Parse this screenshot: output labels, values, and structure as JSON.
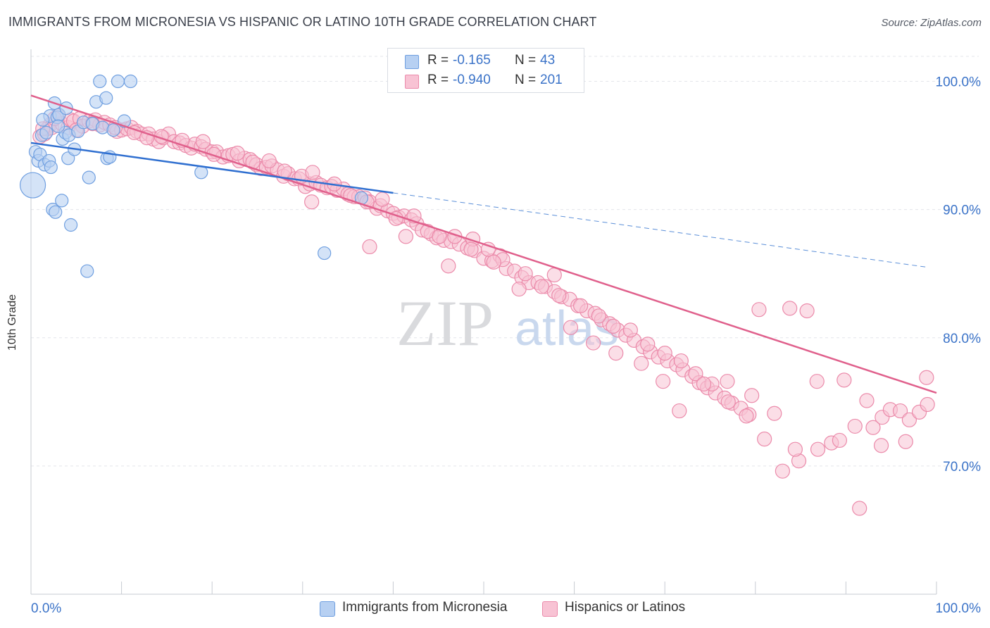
{
  "title": "IMMIGRANTS FROM MICRONESIA VS HISPANIC OR LATINO 10TH GRADE CORRELATION CHART",
  "source": "Source: ZipAtlas.com",
  "watermark": {
    "zip": "ZIP",
    "atlas": "atlas"
  },
  "legend": {
    "r_label": "R =",
    "n_label": "N =",
    "rows": [
      {
        "r": "-0.165",
        "n": "43",
        "fill": "#b7d0f2",
        "stroke": "#6f9fe0"
      },
      {
        "r": "-0.940",
        "n": "201",
        "fill": "#f8c3d4",
        "stroke": "#eb8aaa"
      }
    ]
  },
  "chart_data": {
    "type": "scatter",
    "title": "IMMIGRANTS FROM MICRONESIA VS HISPANIC OR LATINO 10TH GRADE CORRELATION CHART",
    "xlabel": "",
    "ylabel": "10th Grade",
    "xlim": [
      0,
      100
    ],
    "ylim": [
      60,
      102.5
    ],
    "x_tick_labels": [
      "0.0%",
      "100.0%"
    ],
    "y_ticks": [
      70,
      80,
      90,
      100
    ],
    "y_tick_labels": [
      "70.0%",
      "80.0%",
      "90.0%",
      "100.0%"
    ],
    "grid": "horizontal dashed",
    "legend_position": "top-center",
    "series": [
      {
        "name": "Immigrants from Micronesia",
        "color": "#6f9fe0",
        "fill": "#b7d0f2",
        "points": [
          [
            0.2,
            91.9
          ],
          [
            0.5,
            94.5
          ],
          [
            0.8,
            93.8
          ],
          [
            1.0,
            94.3
          ],
          [
            1.2,
            95.8
          ],
          [
            1.5,
            93.5
          ],
          [
            1.7,
            96.0
          ],
          [
            2.0,
            93.8
          ],
          [
            2.1,
            97.3
          ],
          [
            2.2,
            93.3
          ],
          [
            2.4,
            90.0
          ],
          [
            2.6,
            98.3
          ],
          [
            2.7,
            89.8
          ],
          [
            2.9,
            97.2
          ],
          [
            3.1,
            97.4
          ],
          [
            3.4,
            90.7
          ],
          [
            3.5,
            95.5
          ],
          [
            3.8,
            96.0
          ],
          [
            3.9,
            97.9
          ],
          [
            4.1,
            94.0
          ],
          [
            4.2,
            95.8
          ],
          [
            4.4,
            88.8
          ],
          [
            4.8,
            94.7
          ],
          [
            5.2,
            96.1
          ],
          [
            5.8,
            96.8
          ],
          [
            6.2,
            85.2
          ],
          [
            6.4,
            92.5
          ],
          [
            6.8,
            96.7
          ],
          [
            7.2,
            98.4
          ],
          [
            7.6,
            100.0
          ],
          [
            7.9,
            96.4
          ],
          [
            8.3,
            98.7
          ],
          [
            8.4,
            94.0
          ],
          [
            8.7,
            94.1
          ],
          [
            9.1,
            96.2
          ],
          [
            9.6,
            100.0
          ],
          [
            10.3,
            96.9
          ],
          [
            11.0,
            100.0
          ],
          [
            18.8,
            92.9
          ],
          [
            32.4,
            86.6
          ],
          [
            36.5,
            90.9
          ],
          [
            1.3,
            97.0
          ],
          [
            3.0,
            96.5
          ]
        ],
        "trend": {
          "x0": 0,
          "y0": 95.2,
          "x1": 40,
          "y1": 91.3,
          "dash_to_x": 99,
          "dash_to_y": 85.5
        }
      },
      {
        "name": "Hispanics or Latinos",
        "color": "#eb8aaa",
        "fill": "#f8c3d4",
        "points": [
          [
            1.0,
            95.7
          ],
          [
            1.5,
            95.9
          ],
          [
            1.8,
            96.3
          ],
          [
            2.1,
            96.6
          ],
          [
            2.3,
            96.4
          ],
          [
            3.0,
            97.3
          ],
          [
            3.4,
            96.7
          ],
          [
            4.1,
            96.4
          ],
          [
            4.4,
            97.0
          ],
          [
            4.7,
            96.9
          ],
          [
            5.4,
            97.1
          ],
          [
            5.7,
            96.5
          ],
          [
            6.4,
            96.9
          ],
          [
            7.1,
            97.0
          ],
          [
            7.6,
            96.6
          ],
          [
            8.1,
            96.8
          ],
          [
            8.7,
            96.6
          ],
          [
            9.5,
            96.1
          ],
          [
            10.0,
            96.2
          ],
          [
            10.6,
            96.3
          ],
          [
            11.1,
            96.4
          ],
          [
            11.7,
            96.1
          ],
          [
            12.2,
            95.9
          ],
          [
            13.0,
            95.9
          ],
          [
            13.5,
            95.5
          ],
          [
            14.1,
            95.3
          ],
          [
            14.6,
            95.6
          ],
          [
            15.2,
            95.9
          ],
          [
            15.8,
            95.3
          ],
          [
            16.4,
            95.2
          ],
          [
            17.1,
            95.0
          ],
          [
            17.7,
            94.8
          ],
          [
            18.1,
            95.1
          ],
          [
            18.8,
            94.9
          ],
          [
            19.3,
            94.7
          ],
          [
            20.0,
            94.5
          ],
          [
            20.5,
            94.5
          ],
          [
            21.2,
            94.1
          ],
          [
            21.8,
            94.2
          ],
          [
            22.3,
            94.3
          ],
          [
            23.0,
            93.8
          ],
          [
            23.6,
            94.0
          ],
          [
            24.2,
            93.9
          ],
          [
            24.9,
            93.5
          ],
          [
            25.4,
            93.2
          ],
          [
            26.0,
            93.3
          ],
          [
            26.6,
            93.4
          ],
          [
            27.2,
            93.1
          ],
          [
            27.9,
            92.6
          ],
          [
            28.4,
            92.8
          ],
          [
            29.1,
            92.4
          ],
          [
            29.6,
            92.4
          ],
          [
            30.3,
            91.8
          ],
          [
            30.8,
            92.0
          ],
          [
            31.5,
            92.1
          ],
          [
            32.0,
            91.9
          ],
          [
            32.7,
            91.7
          ],
          [
            33.2,
            91.8
          ],
          [
            33.8,
            91.5
          ],
          [
            34.5,
            91.6
          ],
          [
            35.0,
            91.2
          ],
          [
            35.7,
            91.0
          ],
          [
            36.2,
            91.0
          ],
          [
            36.9,
            90.9
          ],
          [
            37.4,
            90.6
          ],
          [
            38.2,
            90.1
          ],
          [
            38.6,
            90.3
          ],
          [
            39.4,
            89.9
          ],
          [
            40.0,
            89.7
          ],
          [
            40.6,
            89.4
          ],
          [
            41.2,
            89.5
          ],
          [
            42.0,
            89.2
          ],
          [
            42.6,
            88.9
          ],
          [
            43.2,
            88.4
          ],
          [
            44.2,
            88.1
          ],
          [
            44.8,
            87.8
          ],
          [
            45.6,
            87.6
          ],
          [
            46.4,
            87.5
          ],
          [
            47.3,
            87.3
          ],
          [
            48.2,
            87.0
          ],
          [
            49.0,
            86.8
          ],
          [
            50.0,
            86.2
          ],
          [
            50.9,
            86.0
          ],
          [
            51.8,
            86.4
          ],
          [
            52.5,
            85.4
          ],
          [
            53.4,
            85.2
          ],
          [
            54.2,
            84.7
          ],
          [
            55.0,
            84.3
          ],
          [
            56.0,
            84.3
          ],
          [
            56.8,
            84.0
          ],
          [
            57.8,
            83.6
          ],
          [
            58.6,
            83.2
          ],
          [
            59.5,
            83.0
          ],
          [
            60.4,
            82.5
          ],
          [
            61.4,
            82.1
          ],
          [
            62.3,
            81.9
          ],
          [
            63.0,
            81.4
          ],
          [
            63.9,
            81.1
          ],
          [
            64.8,
            80.6
          ],
          [
            65.7,
            80.2
          ],
          [
            66.6,
            79.8
          ],
          [
            67.6,
            79.3
          ],
          [
            68.4,
            78.9
          ],
          [
            69.3,
            78.5
          ],
          [
            70.3,
            78.2
          ],
          [
            71.3,
            77.9
          ],
          [
            72.0,
            77.5
          ],
          [
            73.0,
            77.0
          ],
          [
            73.8,
            76.5
          ],
          [
            74.7,
            76.1
          ],
          [
            75.6,
            75.7
          ],
          [
            76.6,
            75.3
          ],
          [
            77.4,
            74.9
          ],
          [
            78.4,
            74.5
          ],
          [
            79.3,
            74.0
          ],
          [
            1.3,
            96.3
          ],
          [
            2.6,
            97.1
          ],
          [
            5.0,
            96.2
          ],
          [
            6.8,
            96.7
          ],
          [
            9.3,
            96.4
          ],
          [
            11.4,
            96.0
          ],
          [
            12.8,
            95.6
          ],
          [
            14.4,
            95.7
          ],
          [
            16.7,
            95.4
          ],
          [
            19.0,
            95.3
          ],
          [
            20.2,
            94.3
          ],
          [
            22.8,
            94.4
          ],
          [
            24.5,
            93.7
          ],
          [
            26.3,
            93.8
          ],
          [
            28.0,
            93.0
          ],
          [
            29.9,
            92.6
          ],
          [
            31.1,
            92.9
          ],
          [
            33.5,
            92.0
          ],
          [
            35.3,
            91.1
          ],
          [
            37.1,
            90.6
          ],
          [
            38.8,
            90.8
          ],
          [
            40.3,
            89.3
          ],
          [
            42.3,
            89.5
          ],
          [
            43.8,
            88.3
          ],
          [
            45.1,
            87.9
          ],
          [
            46.8,
            87.9
          ],
          [
            48.8,
            87.7
          ],
          [
            50.5,
            86.9
          ],
          [
            52.1,
            86.1
          ],
          [
            54.6,
            85.0
          ],
          [
            56.4,
            84.0
          ],
          [
            58.3,
            83.3
          ],
          [
            60.7,
            82.5
          ],
          [
            62.7,
            81.7
          ],
          [
            64.3,
            80.9
          ],
          [
            66.2,
            80.6
          ],
          [
            68.1,
            79.5
          ],
          [
            70.0,
            78.8
          ],
          [
            71.8,
            78.2
          ],
          [
            73.4,
            77.2
          ],
          [
            75.2,
            76.4
          ],
          [
            77.0,
            75.0
          ],
          [
            79.0,
            73.9
          ],
          [
            81.0,
            72.1
          ],
          [
            83.0,
            69.6
          ],
          [
            84.8,
            70.4
          ],
          [
            86.9,
            71.3
          ],
          [
            88.4,
            71.8
          ],
          [
            89.3,
            72.0
          ],
          [
            91.0,
            73.1
          ],
          [
            93.0,
            73.0
          ],
          [
            94.0,
            73.8
          ],
          [
            94.9,
            74.4
          ],
          [
            96.0,
            74.3
          ],
          [
            97.0,
            73.6
          ],
          [
            98.1,
            74.2
          ],
          [
            99.0,
            74.8
          ],
          [
            91.5,
            66.7
          ],
          [
            31.0,
            90.6
          ],
          [
            37.4,
            87.1
          ],
          [
            41.4,
            87.9
          ],
          [
            46.1,
            85.6
          ],
          [
            48.6,
            86.9
          ],
          [
            51.1,
            85.9
          ],
          [
            53.9,
            83.8
          ],
          [
            57.8,
            84.9
          ],
          [
            59.6,
            80.8
          ],
          [
            62.1,
            79.6
          ],
          [
            64.6,
            78.8
          ],
          [
            67.4,
            78.0
          ],
          [
            69.8,
            76.6
          ],
          [
            71.6,
            74.3
          ],
          [
            74.3,
            76.4
          ],
          [
            76.9,
            76.6
          ],
          [
            79.6,
            75.5
          ],
          [
            82.1,
            74.1
          ],
          [
            84.4,
            71.3
          ],
          [
            86.8,
            76.6
          ],
          [
            89.8,
            76.7
          ],
          [
            92.3,
            75.1
          ],
          [
            93.9,
            71.6
          ],
          [
            96.6,
            71.9
          ],
          [
            98.9,
            76.9
          ],
          [
            85.7,
            82.1
          ],
          [
            83.8,
            82.3
          ],
          [
            80.4,
            82.2
          ]
        ],
        "trend": {
          "x0": 0,
          "y0": 98.9,
          "x1": 100,
          "y1": 75.7
        }
      }
    ]
  }
}
